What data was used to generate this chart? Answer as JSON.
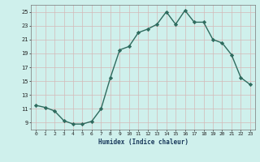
{
  "x": [
    0,
    1,
    2,
    3,
    4,
    5,
    6,
    7,
    8,
    9,
    10,
    11,
    12,
    13,
    14,
    15,
    16,
    17,
    18,
    19,
    20,
    21,
    22,
    23
  ],
  "y": [
    11.5,
    11.2,
    10.7,
    9.3,
    8.8,
    8.8,
    9.2,
    11.0,
    15.5,
    19.5,
    20.0,
    22.0,
    22.5,
    23.2,
    25.0,
    23.2,
    25.2,
    23.5,
    23.5,
    21.0,
    20.5,
    18.8,
    15.5,
    14.5
  ],
  "line_color": "#2e6b5e",
  "marker_color": "#2e6b5e",
  "bg_color": "#cff0ec",
  "grid_color": "#b8c8c4",
  "grid_color_minor": "#d4b8b8",
  "xlabel": "Humidex (Indice chaleur)",
  "ylabel_ticks": [
    9,
    11,
    13,
    15,
    17,
    19,
    21,
    23,
    25
  ],
  "xlim": [
    -0.5,
    23.5
  ],
  "ylim": [
    8.0,
    26.0
  ],
  "xticks": [
    0,
    1,
    2,
    3,
    4,
    5,
    6,
    7,
    8,
    9,
    10,
    11,
    12,
    13,
    14,
    15,
    16,
    17,
    18,
    19,
    20,
    21,
    22,
    23
  ]
}
